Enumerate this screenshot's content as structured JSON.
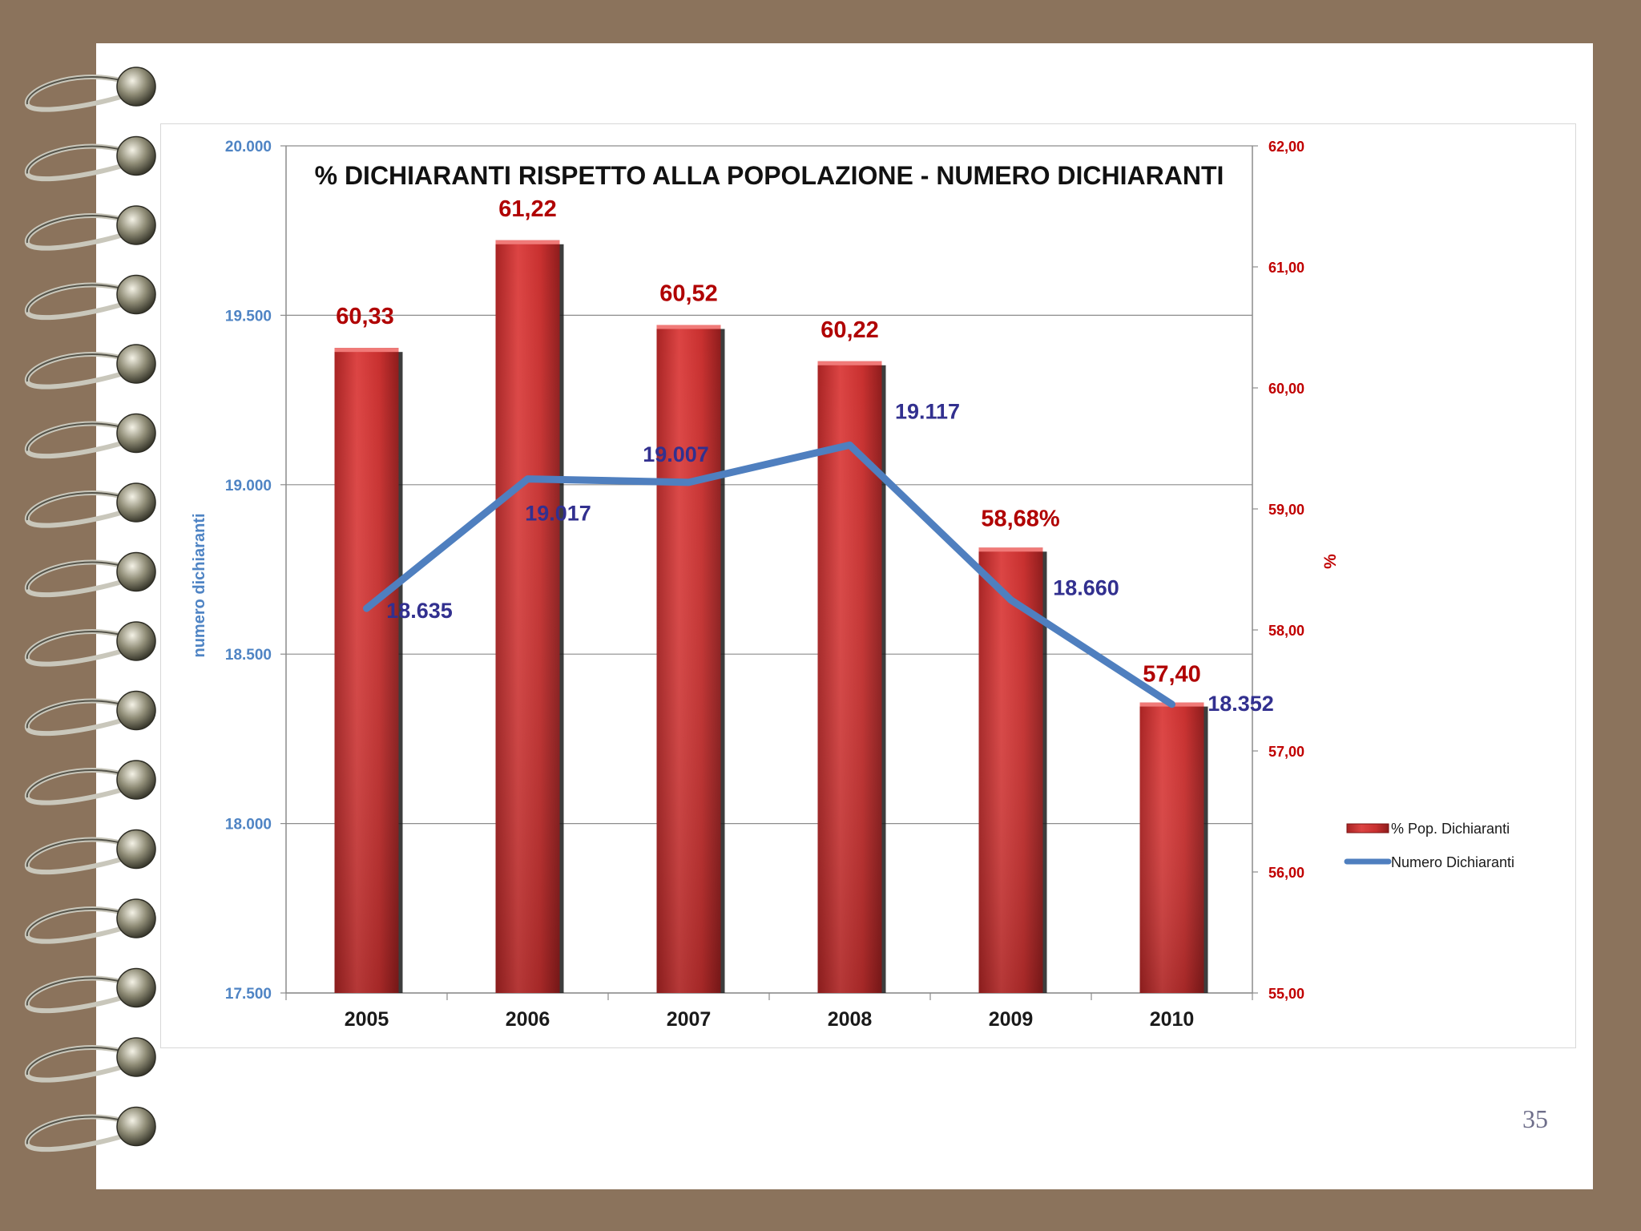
{
  "slide": {
    "page_number": "35"
  },
  "colors": {
    "bar": "#c8302f",
    "line": "#4f7fbf",
    "bar_label": "#b00000",
    "line_label": "#32308f",
    "left_axis": "#4f84c4",
    "right_axis": "#c00000"
  },
  "chart_data": {
    "type": "bar",
    "title": "%  DICHIARANTI  RISPETTO  ALLA POPOLAZIONE  -  NUMERO DICHIARANTI",
    "categories": [
      "2005",
      "2006",
      "2007",
      "2008",
      "2009",
      "2010"
    ],
    "y_left": {
      "label": "numero dichiaranti",
      "range": [
        17500,
        20000
      ],
      "ticks": [
        "17.500",
        "18.000",
        "18.500",
        "19.000",
        "19.500",
        "20.000"
      ]
    },
    "y_right": {
      "label": "%",
      "range": [
        55,
        62
      ],
      "ticks": [
        "55,00",
        "56,00",
        "57,00",
        "58,00",
        "59,00",
        "60,00",
        "61,00",
        "62,00"
      ]
    },
    "series": [
      {
        "name": "% Pop. Dichiaranti",
        "type": "bar",
        "axis": "right",
        "values": [
          60.33,
          61.22,
          60.52,
          60.22,
          58.68,
          57.4
        ],
        "labels": [
          "60,33",
          "61,22",
          "60,52",
          "60,22",
          "58,68%",
          "57,40"
        ]
      },
      {
        "name": "Numero Dichiaranti",
        "type": "line",
        "axis": "left",
        "values": [
          18635,
          19017,
          19007,
          19117,
          18660,
          18352
        ],
        "labels": [
          "18.635",
          "19.017",
          "19.007",
          "19.117",
          "18.660",
          "18.352"
        ]
      }
    ],
    "grid": true,
    "legend": "right"
  }
}
